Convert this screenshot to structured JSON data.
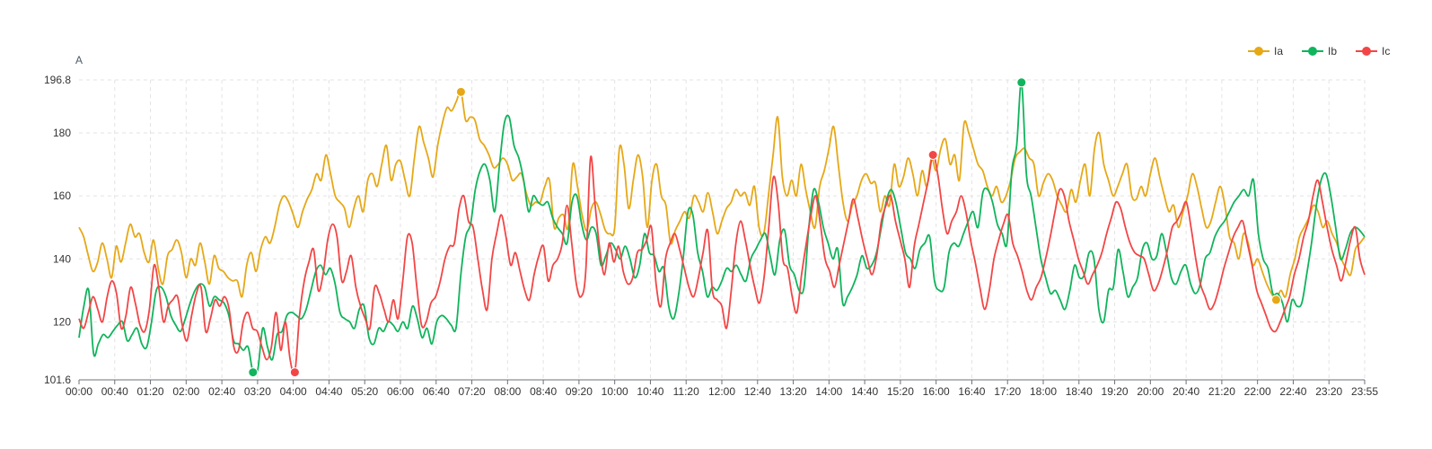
{
  "chart_data": {
    "type": "line",
    "unit_label": "A",
    "ylim": [
      101.6,
      196.8
    ],
    "y_ticks": [
      101.6,
      120,
      140,
      160,
      180,
      196.8
    ],
    "x_ticks": [
      "00:00",
      "00:40",
      "01:20",
      "02:00",
      "02:40",
      "03:20",
      "04:00",
      "04:40",
      "05:20",
      "06:00",
      "06:40",
      "07:20",
      "08:00",
      "08:40",
      "09:20",
      "10:00",
      "10:40",
      "11:20",
      "12:00",
      "12:40",
      "13:20",
      "14:00",
      "14:40",
      "15:20",
      "16:00",
      "16:40",
      "17:20",
      "18:00",
      "18:40",
      "19:20",
      "20:00",
      "20:40",
      "21:20",
      "22:00",
      "22:40",
      "23:20",
      "23:55"
    ],
    "grid": true,
    "legend_position": "top-right",
    "series": [
      {
        "name": "Ia",
        "color": "#e6a817",
        "values": [
          150,
          147,
          141,
          136,
          139,
          145,
          140,
          134,
          144,
          139,
          145,
          151,
          147,
          148,
          142,
          139,
          146,
          137,
          132,
          141,
          143,
          146,
          142,
          134,
          140,
          138,
          145,
          139,
          132,
          141,
          137,
          136,
          134,
          133,
          133,
          128,
          138,
          142,
          136,
          143,
          147,
          145,
          150,
          157,
          160,
          158,
          154,
          150,
          155,
          159,
          162,
          167,
          165,
          173,
          167,
          160,
          158,
          156,
          150,
          156,
          160,
          155,
          165,
          167,
          163,
          170,
          176,
          165,
          170,
          171,
          165,
          160,
          172,
          182,
          177,
          172,
          166,
          176,
          183,
          188,
          187,
          190,
          193,
          184,
          185,
          184,
          178,
          176,
          173,
          169,
          170,
          172,
          170,
          165,
          166,
          167,
          161,
          157,
          158,
          158,
          163,
          165,
          150,
          153,
          154,
          150,
          170,
          163,
          154,
          149,
          156,
          158,
          154,
          149,
          148,
          150,
          175,
          170,
          156,
          165,
          173,
          166,
          150,
          165,
          170,
          160,
          157,
          145,
          149,
          152,
          155,
          153,
          160,
          158,
          155,
          161,
          155,
          148,
          152,
          156,
          158,
          162,
          160,
          161,
          157,
          163,
          150,
          148,
          160,
          173,
          185,
          166,
          160,
          165,
          160,
          170,
          162,
          155,
          150,
          163,
          168,
          175,
          182,
          170,
          158,
          152,
          157,
          160,
          165,
          167,
          164,
          164,
          155,
          160,
          157,
          170,
          163,
          166,
          172,
          167,
          160,
          168,
          163,
          172,
          168,
          175,
          178,
          170,
          173,
          165,
          183,
          180,
          175,
          170,
          168,
          163,
          160,
          163,
          158,
          160,
          165,
          172,
          174,
          175,
          172,
          170,
          160,
          164,
          167,
          165,
          160,
          157,
          155,
          162,
          158,
          165,
          170,
          160,
          175,
          180,
          170,
          165,
          160,
          163,
          167,
          170,
          160,
          159,
          163,
          160,
          167,
          172,
          166,
          160,
          155,
          157,
          150,
          155,
          160,
          167,
          163,
          156,
          150,
          152,
          158,
          163,
          157,
          147,
          145,
          140,
          148,
          145,
          138,
          140,
          136,
          132,
          129,
          127,
          130,
          128,
          135,
          140,
          147,
          150,
          153,
          157,
          155,
          150,
          152,
          148,
          145,
          140,
          137,
          135,
          143,
          145,
          147
        ]
      },
      {
        "name": "Ib",
        "color": "#10b45c",
        "values": [
          115,
          125,
          130,
          110,
          113,
          116,
          115,
          117,
          119,
          120,
          114,
          116,
          118,
          113,
          112,
          120,
          130,
          131,
          128,
          122,
          119,
          117,
          121,
          126,
          130,
          132,
          131,
          125,
          128,
          127,
          126,
          122,
          114,
          113,
          111,
          112,
          104,
          105,
          118,
          112,
          108,
          116,
          117,
          122,
          123,
          122,
          121,
          124,
          130,
          136,
          138,
          135,
          137,
          132,
          123,
          121,
          120,
          118,
          124,
          125,
          115,
          113,
          118,
          117,
          120,
          119,
          117,
          120,
          118,
          125,
          121,
          115,
          118,
          113,
          120,
          122,
          121,
          119,
          118,
          135,
          147,
          151,
          162,
          168,
          170,
          165,
          155,
          170,
          183,
          185,
          176,
          172,
          165,
          155,
          160,
          158,
          157,
          158,
          153,
          150,
          148,
          145,
          158,
          160,
          151,
          146,
          150,
          148,
          138,
          141,
          145,
          143,
          140,
          144,
          140,
          134,
          138,
          148,
          142,
          141,
          136,
          137,
          125,
          121,
          128,
          140,
          155,
          154,
          142,
          136,
          128,
          131,
          130,
          133,
          137,
          136,
          138,
          135,
          133,
          140,
          143,
          146,
          148,
          141,
          135,
          146,
          149,
          138,
          135,
          130,
          131,
          150,
          162,
          158,
          150,
          145,
          140,
          143,
          126,
          128,
          131,
          135,
          141,
          137,
          138,
          142,
          150,
          158,
          162,
          158,
          150,
          142,
          140,
          137,
          143,
          145,
          147,
          133,
          130,
          131,
          142,
          145,
          144,
          148,
          152,
          155,
          150,
          161,
          162,
          158,
          151,
          148,
          145,
          168,
          176,
          196,
          167,
          160,
          150,
          140,
          134,
          129,
          130,
          127,
          124,
          130,
          138,
          134,
          135,
          142,
          140,
          124,
          120,
          130,
          131,
          143,
          136,
          128,
          131,
          134,
          143,
          145,
          140,
          141,
          148,
          142,
          134,
          132,
          136,
          138,
          132,
          129,
          132,
          140,
          142,
          147,
          150,
          152,
          155,
          158,
          160,
          162,
          160,
          165,
          148,
          140,
          137,
          129,
          129,
          126,
          120,
          127,
          125,
          126,
          135,
          145,
          157,
          165,
          167,
          160,
          150,
          140,
          143,
          148,
          150,
          149,
          147
        ]
      },
      {
        "name": "Ic",
        "color": "#f24646",
        "values": [
          121,
          118,
          123,
          128,
          124,
          120,
          128,
          133,
          129,
          118,
          122,
          131,
          126,
          119,
          117,
          124,
          138,
          131,
          120,
          125,
          127,
          128,
          119,
          114,
          122,
          129,
          131,
          117,
          121,
          127,
          125,
          128,
          124,
          112,
          111,
          120,
          123,
          118,
          117,
          112,
          108,
          112,
          123,
          111,
          120,
          108,
          104,
          122,
          133,
          139,
          143,
          130,
          135,
          146,
          151,
          147,
          133,
          136,
          141,
          131,
          125,
          121,
          118,
          131,
          129,
          124,
          120,
          127,
          121,
          133,
          147,
          145,
          131,
          119,
          120,
          126,
          128,
          133,
          140,
          144,
          145,
          156,
          160,
          152,
          150,
          140,
          130,
          124,
          140,
          148,
          154,
          147,
          138,
          142,
          136,
          130,
          127,
          135,
          141,
          144,
          133,
          138,
          140,
          145,
          157,
          145,
          132,
          128,
          136,
          172,
          157,
          143,
          135,
          145,
          139,
          144,
          136,
          132,
          134,
          142,
          143,
          146,
          150,
          132,
          125,
          140,
          145,
          148,
          143,
          137,
          131,
          128,
          134,
          142,
          149,
          130,
          127,
          125,
          118,
          130,
          145,
          152,
          146,
          138,
          131,
          126,
          134,
          150,
          166,
          158,
          140,
          137,
          128,
          123,
          135,
          145,
          154,
          160,
          151,
          140,
          136,
          131,
          138,
          145,
          152,
          159,
          153,
          146,
          140,
          135,
          141,
          152,
          157,
          160,
          152,
          146,
          140,
          131,
          144,
          151,
          158,
          165,
          173,
          167,
          156,
          148,
          152,
          155,
          160,
          155,
          146,
          139,
          131,
          124,
          130,
          140,
          146,
          151,
          154,
          145,
          141,
          136,
          130,
          127,
          131,
          134,
          140,
          147,
          155,
          162,
          160,
          152,
          146,
          140,
          136,
          132,
          135,
          138,
          142,
          148,
          153,
          158,
          156,
          150,
          145,
          142,
          141,
          140,
          135,
          130,
          132,
          137,
          143,
          150,
          152,
          155,
          158,
          150,
          140,
          132,
          128,
          124,
          126,
          131,
          137,
          142,
          147,
          150,
          152,
          145,
          138,
          130,
          126,
          122,
          118,
          117,
          120,
          124,
          128,
          135,
          140,
          147,
          152,
          160,
          165,
          158,
          150,
          143,
          138,
          133,
          139,
          146,
          150,
          140,
          135
        ]
      }
    ]
  }
}
